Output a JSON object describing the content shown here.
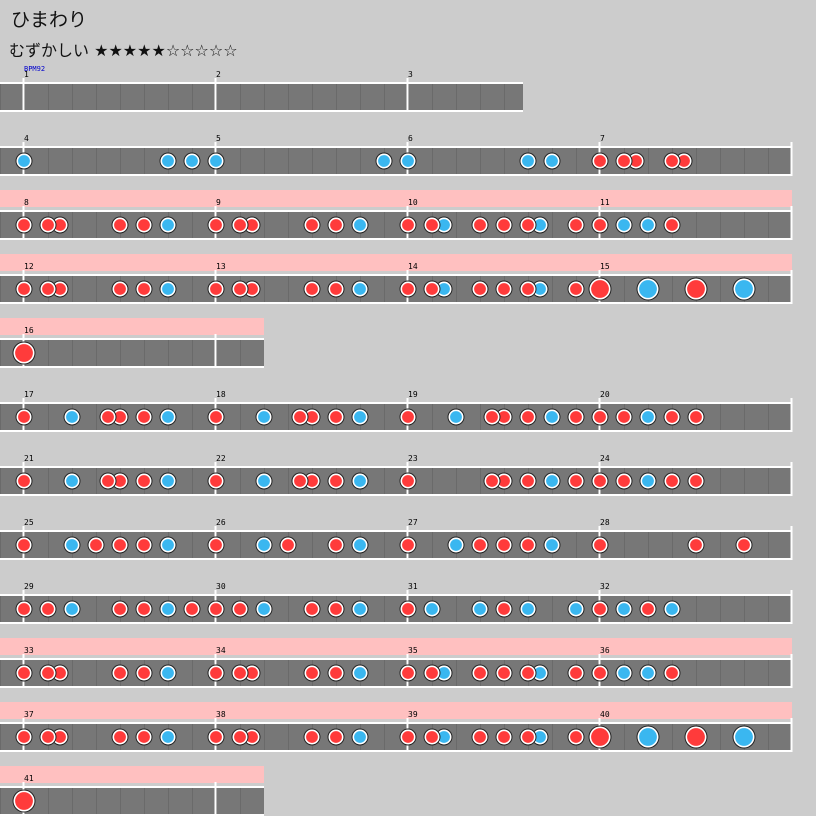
{
  "song": {
    "title": "ひまわり"
  },
  "difficulty": {
    "label": "むずかしい",
    "stars": "★★★★★☆☆☆☆☆"
  },
  "bpm_label": "BPM92",
  "colors": {
    "background": "#cccccc",
    "lane": "#777777",
    "gogo_band": "#ffc0c0",
    "don": "#ff3b3b",
    "ka": "#3ab7f0",
    "bpm_text": "#0000cc"
  },
  "chart_data": {
    "type": "taiko-score",
    "notes_legend": {
      "d": "don (small red)",
      "k": "ka (small blue)",
      "D": "big don",
      "K": "big ka"
    },
    "rows": [
      {
        "measure_labels": [
          "1",
          "2",
          "3"
        ],
        "gogo": false,
        "length": 2.6,
        "notes": []
      },
      {
        "measure_labels": [
          "4",
          "5",
          "6",
          "7"
        ],
        "gogo": false,
        "length": 4,
        "notes": [
          [
            0,
            "k"
          ],
          [
            0.75,
            "k"
          ],
          [
            0.875,
            "k"
          ],
          [
            1,
            "k"
          ],
          [
            1.875,
            "k"
          ],
          [
            2,
            "k"
          ],
          [
            2.625,
            "k"
          ],
          [
            2.75,
            "k"
          ],
          [
            3,
            "d"
          ],
          [
            3.125,
            "d"
          ],
          [
            3.1875,
            "d"
          ],
          [
            3.375,
            "d"
          ],
          [
            3.4375,
            "d"
          ]
        ]
      },
      {
        "measure_labels": [
          "8",
          "9",
          "10",
          "11"
        ],
        "gogo": true,
        "length": 4,
        "notes": [
          [
            0,
            "d"
          ],
          [
            0.125,
            "d"
          ],
          [
            0.1875,
            "d"
          ],
          [
            0.5,
            "d"
          ],
          [
            0.625,
            "d"
          ],
          [
            0.75,
            "k"
          ],
          [
            1,
            "d"
          ],
          [
            1.125,
            "d"
          ],
          [
            1.1875,
            "d"
          ],
          [
            1.5,
            "d"
          ],
          [
            1.625,
            "d"
          ],
          [
            1.75,
            "k"
          ],
          [
            2,
            "d"
          ],
          [
            2.125,
            "d"
          ],
          [
            2.1875,
            "k"
          ],
          [
            2.375,
            "d"
          ],
          [
            2.5,
            "d"
          ],
          [
            2.625,
            "d"
          ],
          [
            2.6875,
            "k"
          ],
          [
            2.875,
            "d"
          ],
          [
            3,
            "d"
          ],
          [
            3.125,
            "k"
          ],
          [
            3.25,
            "k"
          ],
          [
            3.375,
            "d"
          ]
        ]
      },
      {
        "measure_labels": [
          "12",
          "13",
          "14",
          "15"
        ],
        "gogo": true,
        "length": 4,
        "notes": [
          [
            0,
            "d"
          ],
          [
            0.125,
            "d"
          ],
          [
            0.1875,
            "d"
          ],
          [
            0.5,
            "d"
          ],
          [
            0.625,
            "d"
          ],
          [
            0.75,
            "k"
          ],
          [
            1,
            "d"
          ],
          [
            1.125,
            "d"
          ],
          [
            1.1875,
            "d"
          ],
          [
            1.5,
            "d"
          ],
          [
            1.625,
            "d"
          ],
          [
            1.75,
            "k"
          ],
          [
            2,
            "d"
          ],
          [
            2.125,
            "d"
          ],
          [
            2.1875,
            "k"
          ],
          [
            2.375,
            "d"
          ],
          [
            2.5,
            "d"
          ],
          [
            2.625,
            "d"
          ],
          [
            2.6875,
            "k"
          ],
          [
            2.875,
            "d"
          ],
          [
            3,
            "D"
          ],
          [
            3.25,
            "K"
          ],
          [
            3.5,
            "D"
          ],
          [
            3.75,
            "K"
          ]
        ]
      },
      {
        "measure_labels": [
          "16"
        ],
        "gogo": true,
        "length": 1.25,
        "notes": [
          [
            0,
            "D"
          ]
        ]
      },
      {
        "measure_labels": [
          "17",
          "18",
          "19",
          "20"
        ],
        "gogo": false,
        "length": 4,
        "notes": [
          [
            0,
            "d"
          ],
          [
            0.25,
            "k"
          ],
          [
            0.4375,
            "d"
          ],
          [
            0.5,
            "d"
          ],
          [
            0.625,
            "d"
          ],
          [
            0.75,
            "k"
          ],
          [
            1,
            "d"
          ],
          [
            1.25,
            "k"
          ],
          [
            1.4375,
            "d"
          ],
          [
            1.5,
            "d"
          ],
          [
            1.625,
            "d"
          ],
          [
            1.75,
            "k"
          ],
          [
            2,
            "d"
          ],
          [
            2.25,
            "k"
          ],
          [
            2.4375,
            "d"
          ],
          [
            2.5,
            "d"
          ],
          [
            2.625,
            "d"
          ],
          [
            2.75,
            "k"
          ],
          [
            2.875,
            "d"
          ],
          [
            3,
            "d"
          ],
          [
            3.125,
            "d"
          ],
          [
            3.25,
            "k"
          ],
          [
            3.375,
            "d"
          ],
          [
            3.5,
            "d"
          ]
        ]
      },
      {
        "measure_labels": [
          "21",
          "22",
          "23",
          "24"
        ],
        "gogo": false,
        "length": 4,
        "notes": [
          [
            0,
            "d"
          ],
          [
            0.25,
            "k"
          ],
          [
            0.4375,
            "d"
          ],
          [
            0.5,
            "d"
          ],
          [
            0.625,
            "d"
          ],
          [
            0.75,
            "k"
          ],
          [
            1,
            "d"
          ],
          [
            1.25,
            "k"
          ],
          [
            1.4375,
            "d"
          ],
          [
            1.5,
            "d"
          ],
          [
            1.625,
            "d"
          ],
          [
            1.75,
            "k"
          ],
          [
            2,
            "d"
          ],
          [
            2.4375,
            "d"
          ],
          [
            2.5,
            "d"
          ],
          [
            2.625,
            "d"
          ],
          [
            2.75,
            "k"
          ],
          [
            2.875,
            "d"
          ],
          [
            3,
            "d"
          ],
          [
            3.125,
            "d"
          ],
          [
            3.25,
            "k"
          ],
          [
            3.375,
            "d"
          ],
          [
            3.5,
            "d"
          ]
        ]
      },
      {
        "measure_labels": [
          "25",
          "26",
          "27",
          "28"
        ],
        "gogo": false,
        "length": 4,
        "notes": [
          [
            0,
            "d"
          ],
          [
            0.25,
            "k"
          ],
          [
            0.375,
            "d"
          ],
          [
            0.5,
            "d"
          ],
          [
            0.625,
            "d"
          ],
          [
            0.75,
            "k"
          ],
          [
            1,
            "d"
          ],
          [
            1.25,
            "k"
          ],
          [
            1.375,
            "d"
          ],
          [
            1.625,
            "d"
          ],
          [
            1.75,
            "k"
          ],
          [
            2,
            "d"
          ],
          [
            2.25,
            "k"
          ],
          [
            2.375,
            "d"
          ],
          [
            2.5,
            "d"
          ],
          [
            2.625,
            "d"
          ],
          [
            2.75,
            "k"
          ],
          [
            3,
            "d"
          ],
          [
            3.5,
            "d"
          ],
          [
            3.75,
            "d"
          ]
        ]
      },
      {
        "measure_labels": [
          "29",
          "30",
          "31",
          "32"
        ],
        "gogo": false,
        "length": 4,
        "notes": [
          [
            0,
            "d"
          ],
          [
            0.125,
            "d"
          ],
          [
            0.25,
            "k"
          ],
          [
            0.5,
            "d"
          ],
          [
            0.625,
            "d"
          ],
          [
            0.75,
            "k"
          ],
          [
            0.875,
            "d"
          ],
          [
            1,
            "d"
          ],
          [
            1.125,
            "d"
          ],
          [
            1.25,
            "k"
          ],
          [
            1.5,
            "d"
          ],
          [
            1.625,
            "d"
          ],
          [
            1.75,
            "k"
          ],
          [
            2,
            "d"
          ],
          [
            2.125,
            "k"
          ],
          [
            2.375,
            "k"
          ],
          [
            2.5,
            "d"
          ],
          [
            2.625,
            "k"
          ],
          [
            2.875,
            "k"
          ],
          [
            3,
            "d"
          ],
          [
            3.125,
            "k"
          ],
          [
            3.25,
            "d"
          ],
          [
            3.375,
            "k"
          ]
        ]
      },
      {
        "measure_labels": [
          "33",
          "34",
          "35",
          "36"
        ],
        "gogo": true,
        "length": 4,
        "notes": [
          [
            0,
            "d"
          ],
          [
            0.125,
            "d"
          ],
          [
            0.1875,
            "d"
          ],
          [
            0.5,
            "d"
          ],
          [
            0.625,
            "d"
          ],
          [
            0.75,
            "k"
          ],
          [
            1,
            "d"
          ],
          [
            1.125,
            "d"
          ],
          [
            1.1875,
            "d"
          ],
          [
            1.5,
            "d"
          ],
          [
            1.625,
            "d"
          ],
          [
            1.75,
            "k"
          ],
          [
            2,
            "d"
          ],
          [
            2.125,
            "d"
          ],
          [
            2.1875,
            "k"
          ],
          [
            2.375,
            "d"
          ],
          [
            2.5,
            "d"
          ],
          [
            2.625,
            "d"
          ],
          [
            2.6875,
            "k"
          ],
          [
            2.875,
            "d"
          ],
          [
            3,
            "d"
          ],
          [
            3.125,
            "k"
          ],
          [
            3.25,
            "k"
          ],
          [
            3.375,
            "d"
          ]
        ]
      },
      {
        "measure_labels": [
          "37",
          "38",
          "39",
          "40"
        ],
        "gogo": true,
        "length": 4,
        "notes": [
          [
            0,
            "d"
          ],
          [
            0.125,
            "d"
          ],
          [
            0.1875,
            "d"
          ],
          [
            0.5,
            "d"
          ],
          [
            0.625,
            "d"
          ],
          [
            0.75,
            "k"
          ],
          [
            1,
            "d"
          ],
          [
            1.125,
            "d"
          ],
          [
            1.1875,
            "d"
          ],
          [
            1.5,
            "d"
          ],
          [
            1.625,
            "d"
          ],
          [
            1.75,
            "k"
          ],
          [
            2,
            "d"
          ],
          [
            2.125,
            "d"
          ],
          [
            2.1875,
            "k"
          ],
          [
            2.375,
            "d"
          ],
          [
            2.5,
            "d"
          ],
          [
            2.625,
            "d"
          ],
          [
            2.6875,
            "k"
          ],
          [
            2.875,
            "d"
          ],
          [
            3,
            "D"
          ],
          [
            3.25,
            "K"
          ],
          [
            3.5,
            "D"
          ],
          [
            3.75,
            "K"
          ]
        ]
      },
      {
        "measure_labels": [
          "41"
        ],
        "gogo": true,
        "length": 1.25,
        "notes": [
          [
            0,
            "D"
          ]
        ]
      }
    ]
  }
}
